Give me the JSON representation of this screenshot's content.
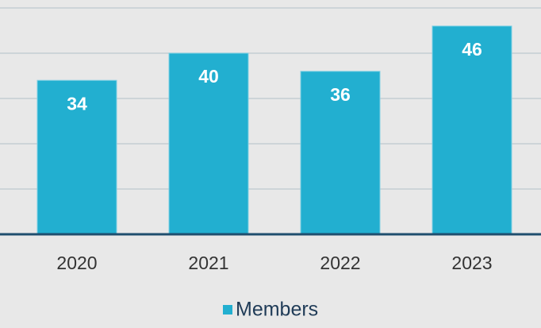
{
  "chart_data": {
    "type": "bar",
    "categories": [
      "2020",
      "2021",
      "2022",
      "2023"
    ],
    "series": [
      {
        "name": "Members",
        "color": "#22afd0",
        "values": [
          34,
          40,
          36,
          46
        ]
      }
    ],
    "ylim": [
      0,
      50
    ],
    "yticks": [
      0,
      10,
      20,
      30,
      40,
      50
    ],
    "grid": true,
    "legend": "bottom"
  }
}
